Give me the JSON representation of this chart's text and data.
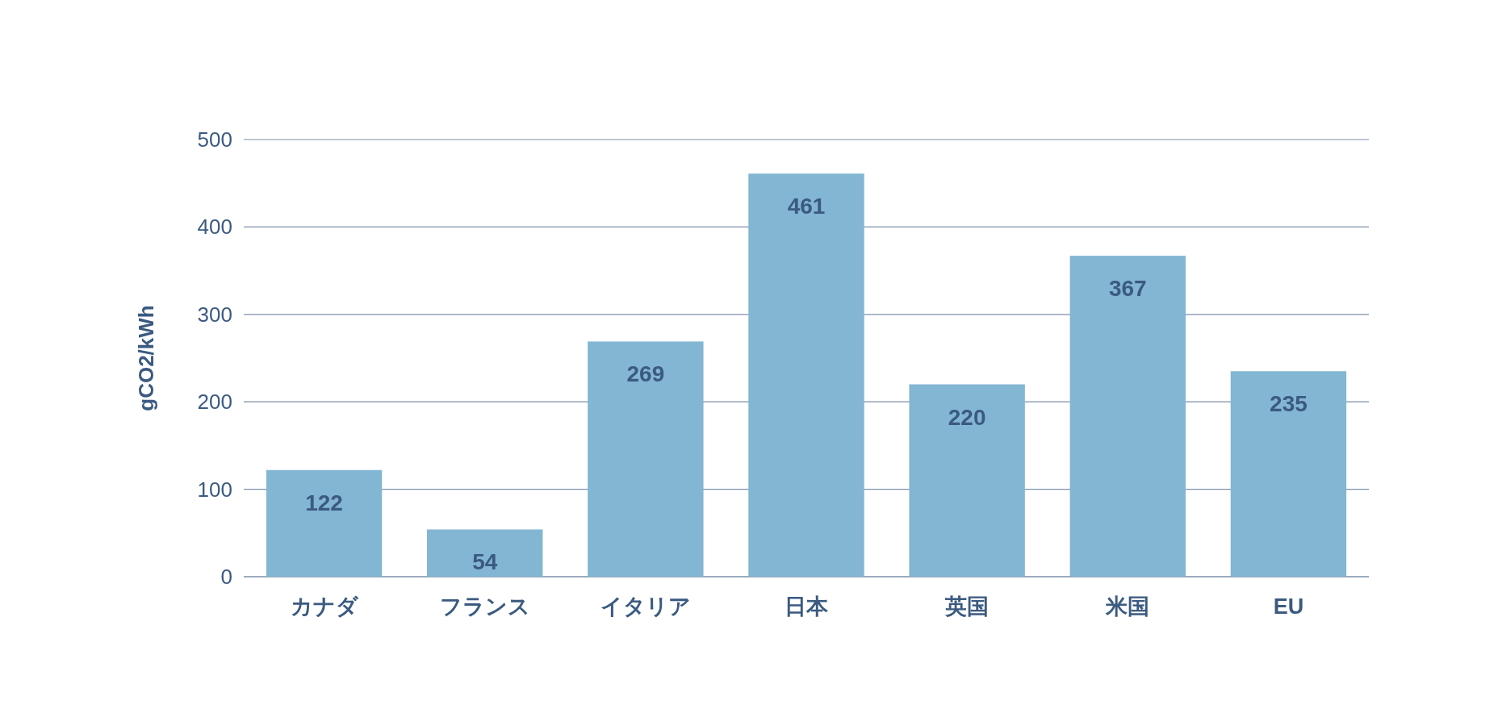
{
  "chart_data": {
    "type": "bar",
    "ylabel": "gCO2/kWh",
    "categories": [
      "カナダ",
      "フランス",
      "イタリア",
      "日本",
      "英国",
      "米国",
      "EU"
    ],
    "values": [
      122,
      54,
      269,
      461,
      220,
      367,
      235
    ],
    "color": "#82b6d3",
    "ylim": [
      0,
      500
    ],
    "yticks": [
      0,
      100,
      200,
      300,
      400,
      500
    ],
    "grid": "y",
    "data_labels": true
  }
}
